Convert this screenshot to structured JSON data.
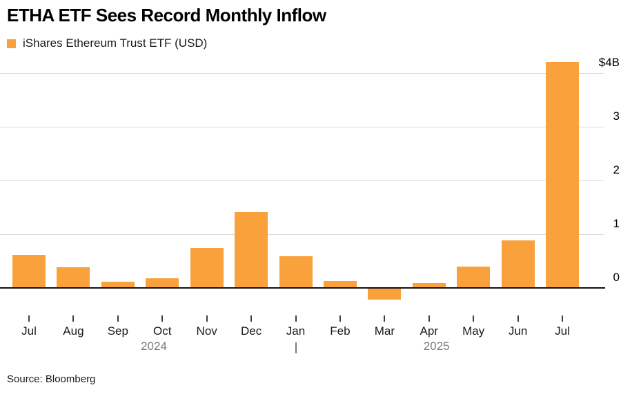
{
  "header": {
    "title": "ETHA ETF Sees Record Monthly Inflow",
    "legend_label": "iShares Ethereum Trust ETF (USD)"
  },
  "footer": {
    "source": "Source: Bloomberg"
  },
  "colors": {
    "bar": "#F9A13A",
    "gridline": "#D8D8D8",
    "axis": "#111111",
    "tick": "#3d3d3d",
    "month_label": "#1a1a1a",
    "year_label": "#7a7a7a",
    "y_label": "#000000",
    "background": "#ffffff"
  },
  "chart_data": {
    "type": "bar",
    "title": "ETHA ETF Sees Record Monthly Inflow",
    "series_name": "iShares Ethereum Trust ETF (USD)",
    "unit": "USD billions",
    "categories": [
      "Jul",
      "Aug",
      "Sep",
      "Oct",
      "Nov",
      "Dec",
      "Jan",
      "Feb",
      "Mar",
      "Apr",
      "May",
      "Jun",
      "Jul"
    ],
    "values": [
      0.61,
      0.38,
      0.12,
      0.18,
      0.74,
      1.41,
      0.59,
      0.13,
      -0.22,
      0.09,
      0.4,
      0.89,
      4.21
    ],
    "xlabel": "",
    "ylabel": "",
    "ylim": [
      -0.5,
      4.3
    ],
    "grid": true,
    "legend_position": "top-left",
    "y_ticks": [
      {
        "value": 4,
        "label": "$4B"
      },
      {
        "value": 3,
        "label": "3"
      },
      {
        "value": 2,
        "label": "2"
      },
      {
        "value": 1,
        "label": "1"
      },
      {
        "value": 0,
        "label": "0"
      }
    ],
    "year_labels": [
      {
        "text": "2024",
        "month_index": 2.81
      },
      {
        "text": "2025",
        "month_index": 9.17
      }
    ],
    "year_divider_month_index": 6
  }
}
